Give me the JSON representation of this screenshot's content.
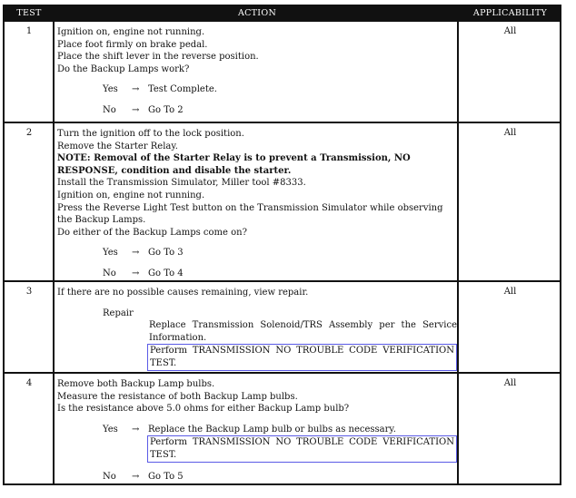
{
  "header": {
    "test": "TEST",
    "action": "ACTION",
    "applicability": "APPLICABILITY"
  },
  "arrow": "→",
  "rows": [
    {
      "test": "1",
      "applicability": "All",
      "lines": [
        "Ignition on, engine not running.",
        "Place foot firmly on brake pedal.",
        "Place the shift lever in the reverse position.",
        "Do the Backup Lamps work?"
      ],
      "yes": {
        "label": "Yes",
        "result": "Test Complete."
      },
      "no": {
        "label": "No",
        "result": "Go To  2"
      }
    },
    {
      "test": "2",
      "applicability": "All",
      "lines": [
        "Turn the ignition off to the lock position.",
        "Remove the Starter Relay."
      ],
      "note": [
        "NOTE: Removal of the Starter Relay is to prevent a Transmission, NO",
        "RESPONSE, condition and disable the starter."
      ],
      "lines2": [
        "Install the Transmission Simulator, Miller tool #8333.",
        "Ignition on, engine not running.",
        "Press the Reverse Light Test button on the Transmission Simulator while observing",
        "the Backup Lamps.",
        "Do either of the Backup Lamps come on?"
      ],
      "yes": {
        "label": "Yes",
        "result": "Go To  3"
      },
      "no": {
        "label": "No",
        "result": "Go To  4"
      }
    },
    {
      "test": "3",
      "applicability": "All",
      "lines": [
        "If there are no possible causes remaining, view repair."
      ],
      "repair_label": "Repair",
      "repair_text": "Replace Transmission Solenoid/TRS Assembly per the Service Information.",
      "verify": "Perform TRANSMISSION NO TROUBLE CODE VERIFICATION TEST."
    },
    {
      "test": "4",
      "applicability": "All",
      "lines": [
        "Remove both Backup Lamp bulbs.",
        "Measure the resistance of both Backup Lamp bulbs.",
        "Is the resistance above 5.0 ohms for either Backup Lamp bulb?"
      ],
      "yes": {
        "label": "Yes",
        "result": "Replace the Backup Lamp bulb or bulbs as necessary."
      },
      "verify": "Perform TRANSMISSION NO TROUBLE CODE VERIFICATION TEST.",
      "no": {
        "label": "No",
        "result": "Go To  5"
      }
    }
  ]
}
